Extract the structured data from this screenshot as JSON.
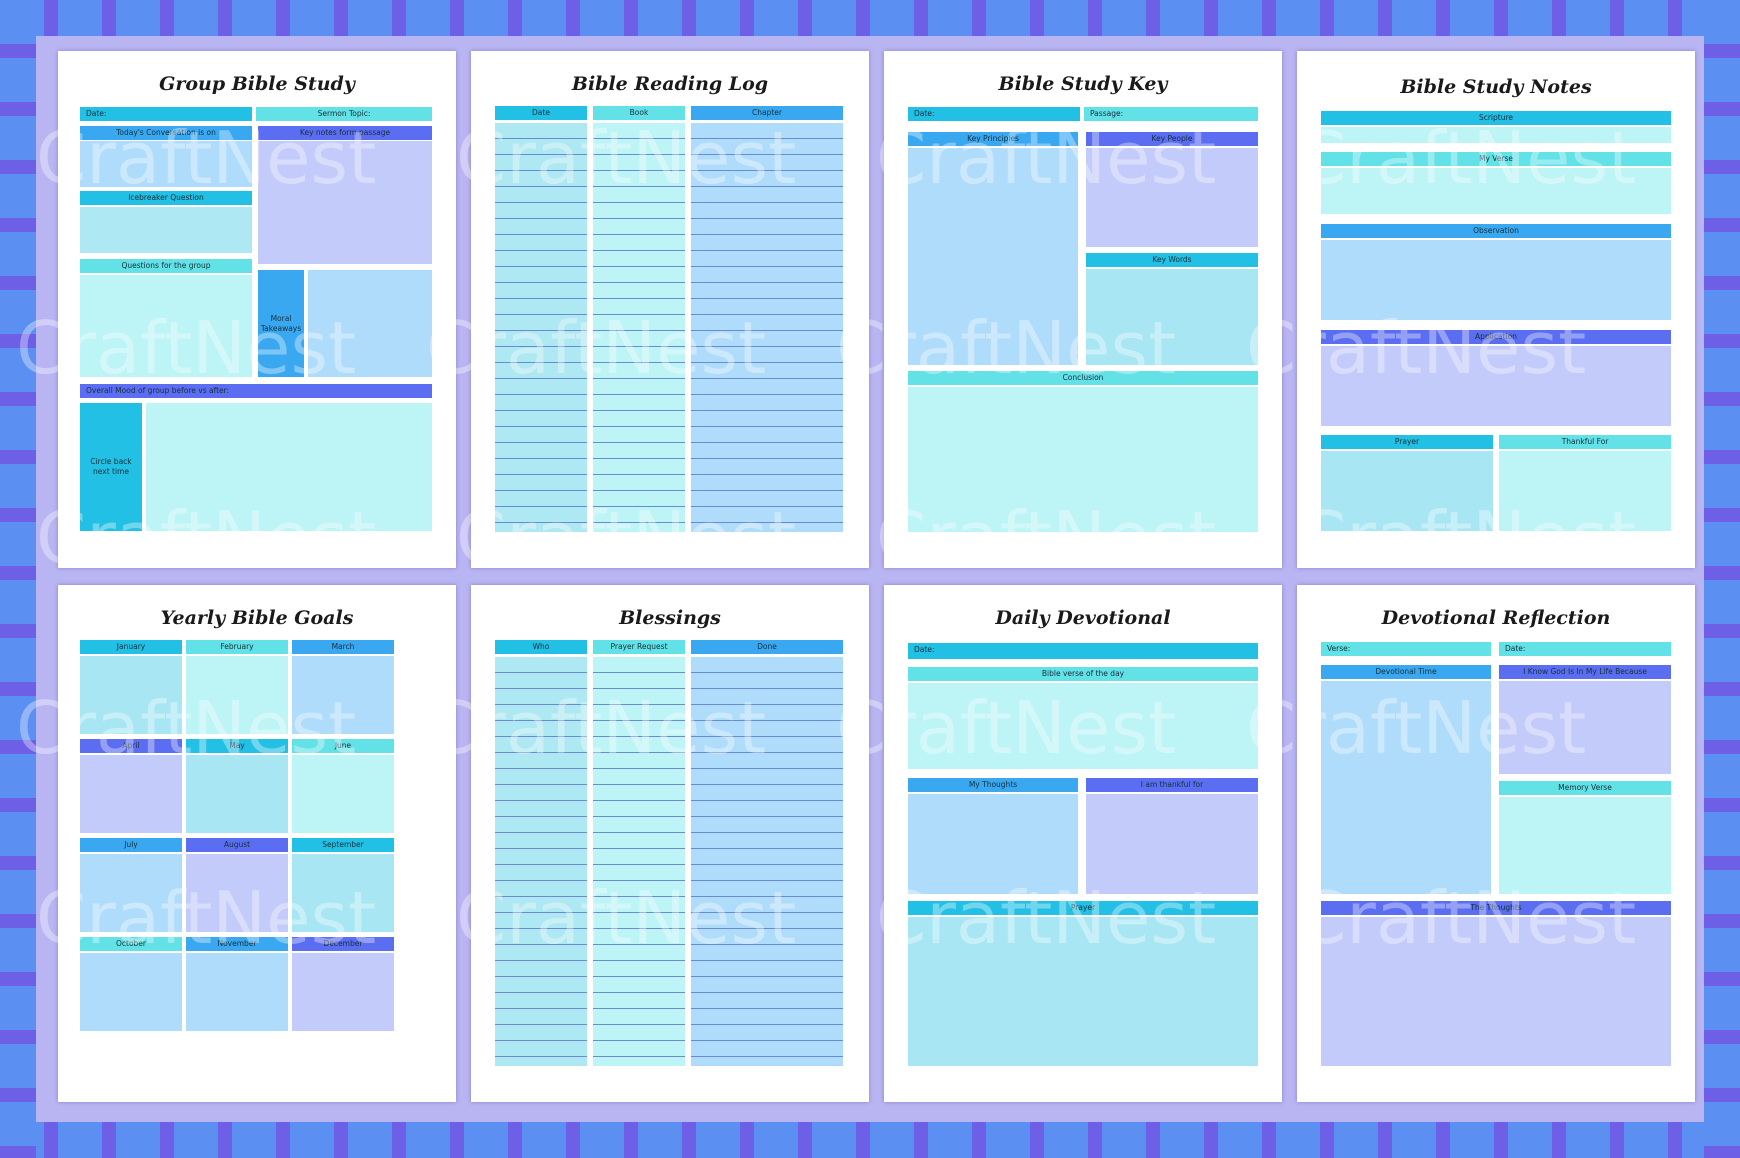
{
  "watermark": "CraftNest",
  "pages": {
    "group": {
      "title": "Group Bible Study",
      "date": "Date:",
      "sermon_topic": "Sermon Topic:",
      "todays_conversation": "Today's Conversation is on",
      "key_notes": "Key notes form passage",
      "icebreaker": "Icebreaker Question",
      "questions": "Questions for the group",
      "moral_takeaways": "Moral Takeaways",
      "overall_mood": "Overall Mood of group before vs after:",
      "circle_back": "Circle back next time"
    },
    "reading_log": {
      "title": "Bible Reading Log",
      "columns": [
        "Date",
        "Book",
        "Chapter"
      ]
    },
    "study_key": {
      "title": "Bible Study Key",
      "date": "Date:",
      "passage": "Passage:",
      "key_principles": "Key Principles",
      "key_people": "Key People",
      "key_words": "Key Words",
      "conclusion": "Conclusion"
    },
    "study_notes": {
      "title": "Bible Study Notes",
      "scripture": "Scripture",
      "my_verse": "My Verse",
      "observation": "Observation",
      "application": "Application",
      "prayer": "Prayer",
      "thankful_for": "Thankful For"
    },
    "yearly_goals": {
      "title": "Yearly Bible Goals",
      "months": [
        "January",
        "February",
        "March",
        "April",
        "May",
        "June",
        "July",
        "August",
        "September",
        "October",
        "November",
        "December"
      ]
    },
    "blessings": {
      "title": "Blessings",
      "columns": [
        "Who",
        "Prayer Request",
        "Done"
      ]
    },
    "daily_devotional": {
      "title": "Daily Devotional",
      "date": "Date:",
      "verse_of_day": "Bible verse of the day",
      "my_thoughts": "My Thoughts",
      "thankful": "I am thankful for",
      "prayer": "Prayer"
    },
    "devotional_reflection": {
      "title": "Devotional Reflection",
      "verse": "Verse:",
      "date": "Date:",
      "devotional_time": "Devotional Time",
      "know_god": "I Know God Is In My Life Because",
      "memory_verse": "Memory Verse",
      "the_thoughts": "The Thoughts"
    }
  }
}
